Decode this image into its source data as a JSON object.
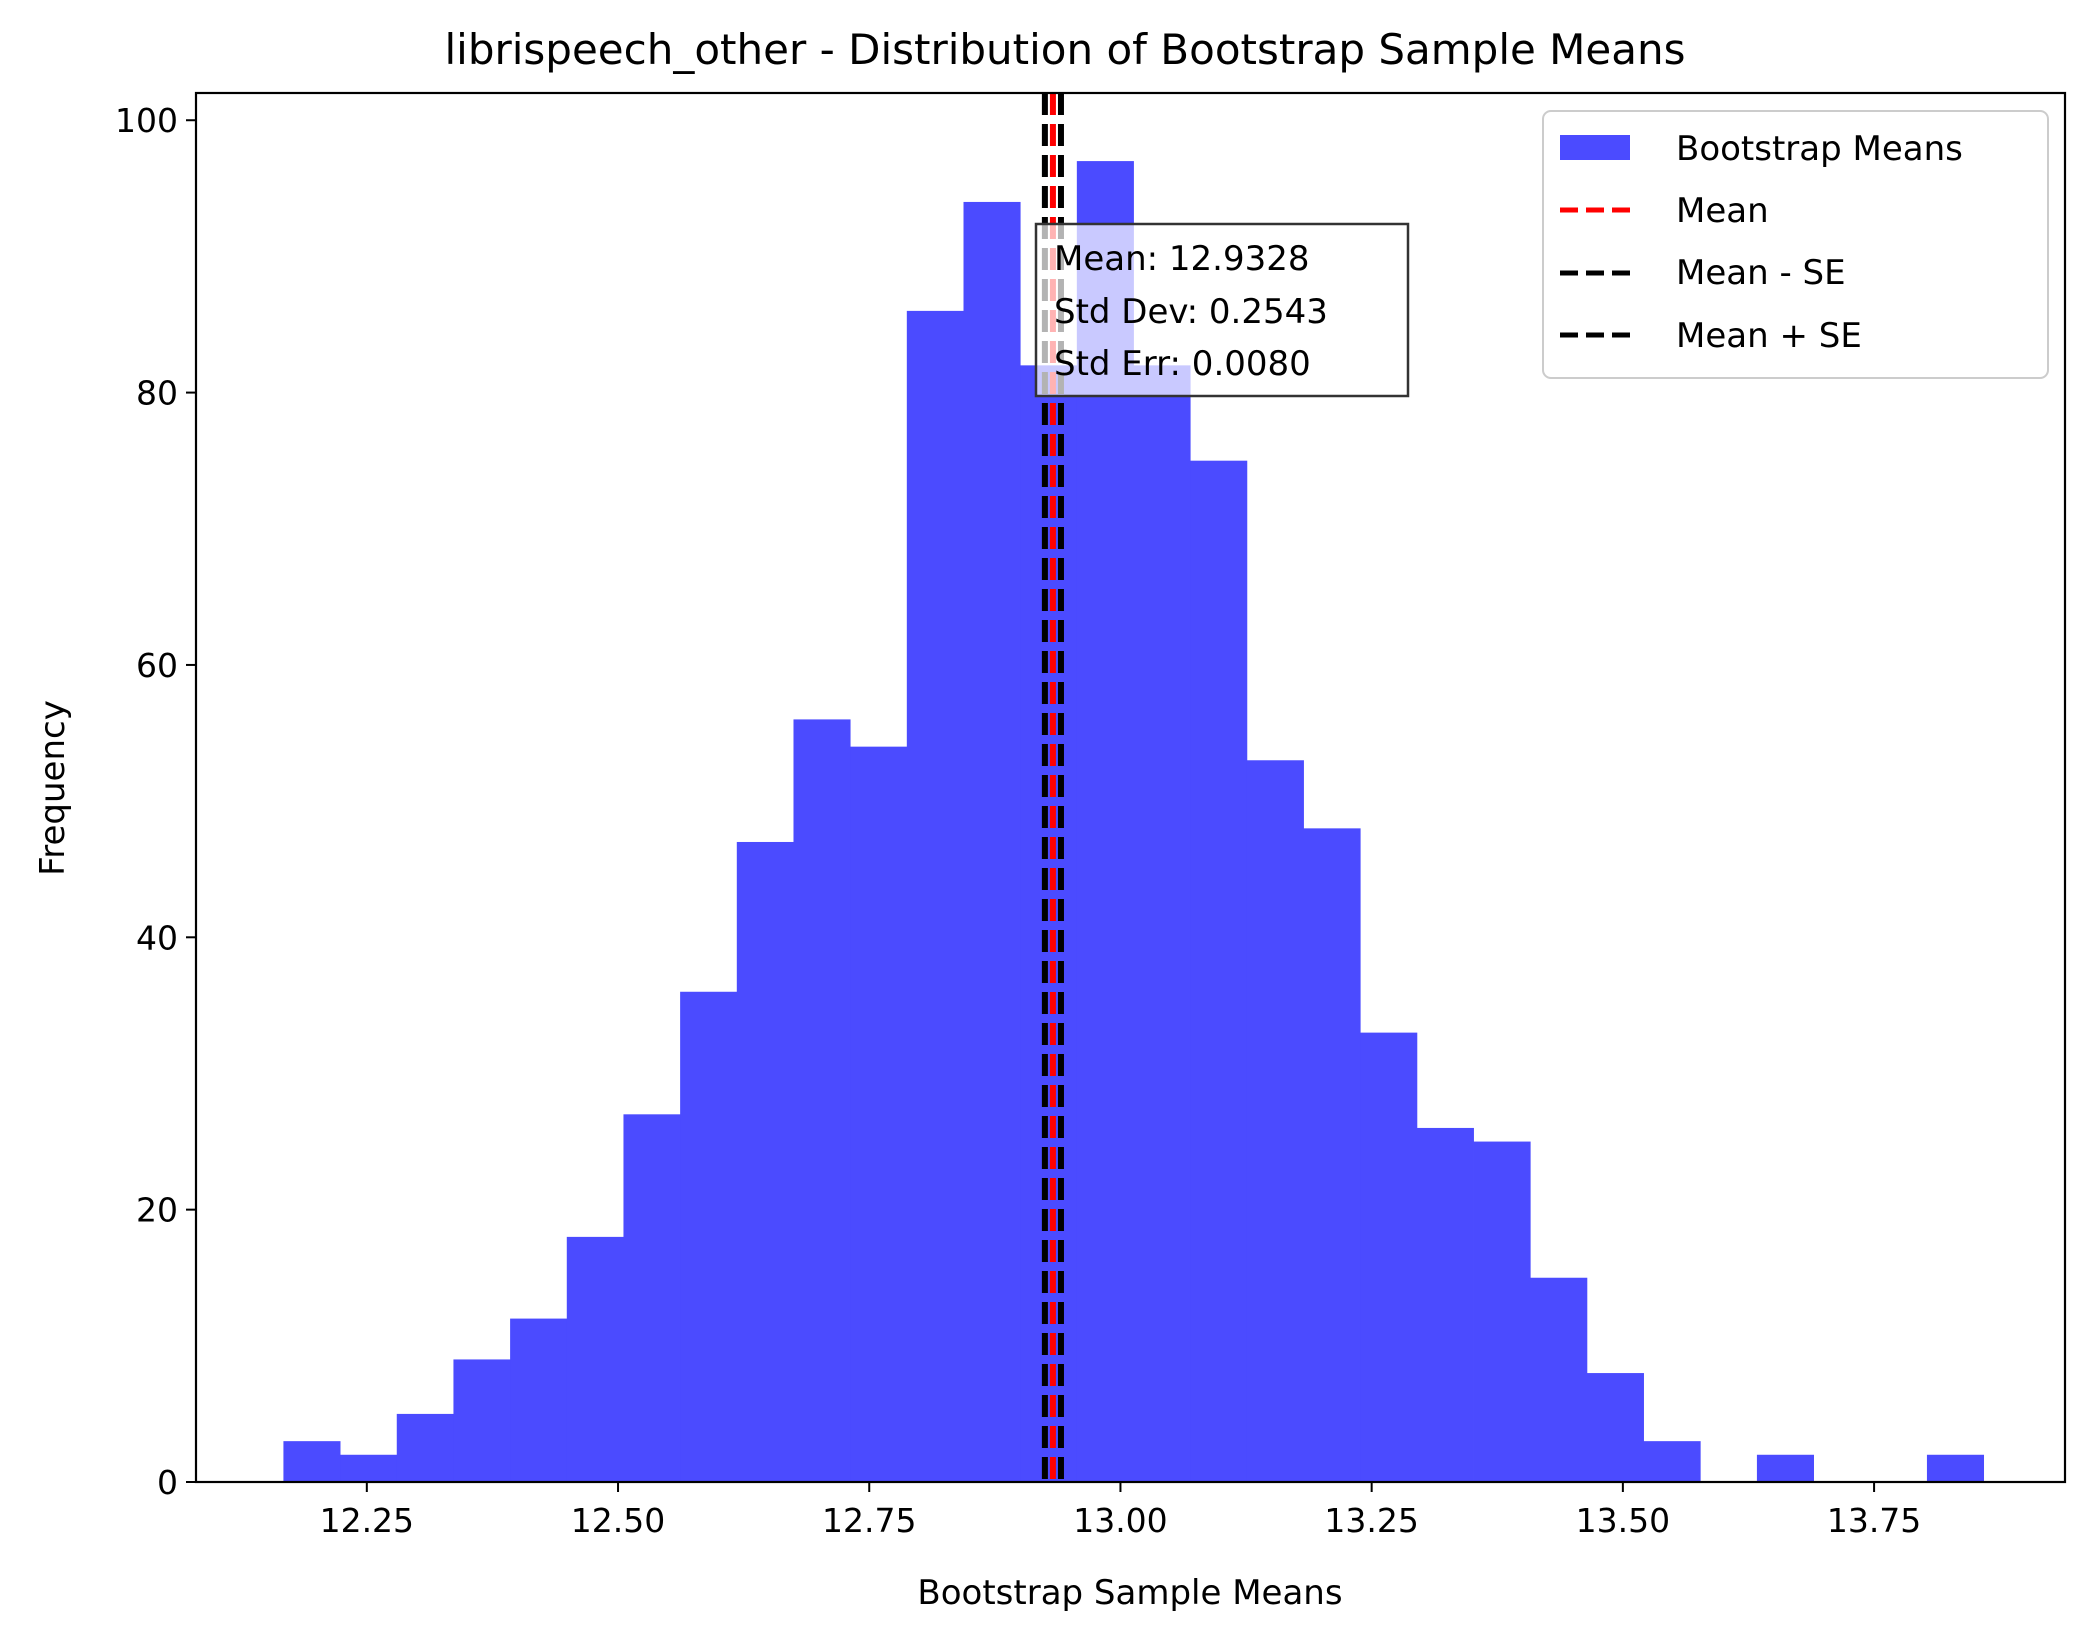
{
  "chart_data": {
    "type": "bar",
    "title": "librispeech_other - Distribution of Bootstrap Sample Means",
    "xlabel": "Bootstrap Sample Means",
    "ylabel": "Frequency",
    "xlim": [
      12.08,
      13.94
    ],
    "ylim": [
      0,
      102
    ],
    "x_ticks": [
      12.25,
      12.5,
      12.75,
      13.0,
      13.25,
      13.5,
      13.75
    ],
    "x_tick_labels": [
      "12.25",
      "12.50",
      "12.75",
      "13.00",
      "13.25",
      "13.50",
      "13.75"
    ],
    "y_ticks": [
      0,
      20,
      40,
      60,
      80,
      100
    ],
    "y_tick_labels": [
      "0",
      "20",
      "40",
      "60",
      "80",
      "100"
    ],
    "bin_start": 12.167,
    "bin_width": 0.0564,
    "series": [
      {
        "name": "Bootstrap Means",
        "color": "#4b4bff",
        "values": [
          3,
          2,
          5,
          9,
          12,
          18,
          27,
          36,
          47,
          56,
          54,
          86,
          94,
          82,
          97,
          82,
          75,
          53,
          48,
          33,
          26,
          25,
          15,
          8,
          3,
          0,
          2,
          0,
          0,
          2
        ]
      }
    ],
    "lines": [
      {
        "name": "Mean",
        "x": 12.9328,
        "color": "#ff0000"
      },
      {
        "name": "Mean - SE",
        "x": 12.9248,
        "color": "#000000"
      },
      {
        "name": "Mean + SE",
        "x": 12.9408,
        "color": "#000000"
      }
    ],
    "stats_box": [
      "Mean: 12.9328",
      "Std Dev: 0.2543",
      "Std Err: 0.0080"
    ],
    "legend_position": "top-right",
    "grid": false
  }
}
